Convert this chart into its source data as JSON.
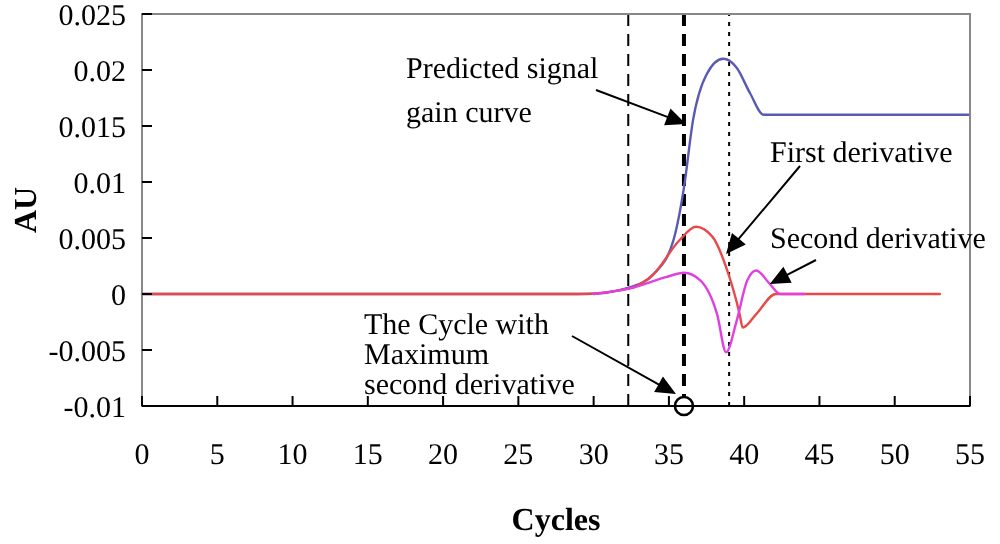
{
  "chart_data": {
    "type": "line",
    "xlabel": "Cycles",
    "ylabel": "AU",
    "xlim": [
      0,
      55
    ],
    "xticks": [
      0,
      5,
      10,
      15,
      20,
      25,
      30,
      35,
      40,
      45,
      50,
      55
    ],
    "ylim": [
      -0.01,
      0.025
    ],
    "yticks": [
      -0.01,
      -0.005,
      0,
      0.005,
      0.01,
      0.015,
      0.02,
      0.025
    ],
    "grid": false,
    "marker": "none",
    "line_style": "solid",
    "series": [
      {
        "color": "#5a5ab4",
        "x": [
          0,
          29.5,
          32.4,
          34,
          35.3,
          36,
          36.6,
          37.5,
          38.6,
          39.5,
          40.4,
          41.3,
          55
        ],
        "values": [
          0,
          0,
          0.0006,
          0.0018,
          0.0048,
          0.0095,
          0.0155,
          0.0196,
          0.021,
          0.0202,
          0.0179,
          0.016,
          0.016
        ]
      },
      {
        "color": "#e84a4a",
        "x": [
          0,
          29,
          32.4,
          34,
          35.7,
          36.8,
          37.9,
          38.8,
          39.7,
          39.9,
          40.8,
          42.1,
          53
        ],
        "values": [
          0,
          0,
          0.0005,
          0.0018,
          0.0048,
          0.006,
          0.0051,
          0.0024,
          -0.0018,
          -0.003,
          -0.0018,
          0,
          0
        ]
      },
      {
        "color": "#e040e0",
        "x": [
          30,
          32.4,
          34.8,
          36,
          37.1,
          38.2,
          38.8,
          39.5,
          40.2,
          40.8,
          41.7,
          42.4,
          44
        ],
        "values": [
          0,
          0.0005,
          0.0015,
          0.0019,
          0.0012,
          -0.0018,
          -0.0052,
          -0.0024,
          0.0012,
          0.0021,
          0.0009,
          0,
          0
        ]
      },
      {
        "type": "scatter",
        "marker": "circle",
        "color": "#000000",
        "x": [
          36
        ],
        "values": [
          -0.01
        ]
      }
    ],
    "ref_lines": [
      {
        "axis": "x",
        "value": 32.3,
        "line_style": "dashed",
        "color": "#000000"
      },
      {
        "axis": "x",
        "value": 36,
        "line_style": "dashed",
        "color": "#000000"
      },
      {
        "axis": "x",
        "value": 39,
        "line_style": "dotted",
        "color": "#000000"
      }
    ],
    "annotations": [
      "Predicted signal gain curve",
      "First derivative",
      {
        "text": "Second derivative",
        "x": 41.7,
        "y": 0.0009
      },
      "The Cycle with Maximum second derivative"
    ]
  }
}
